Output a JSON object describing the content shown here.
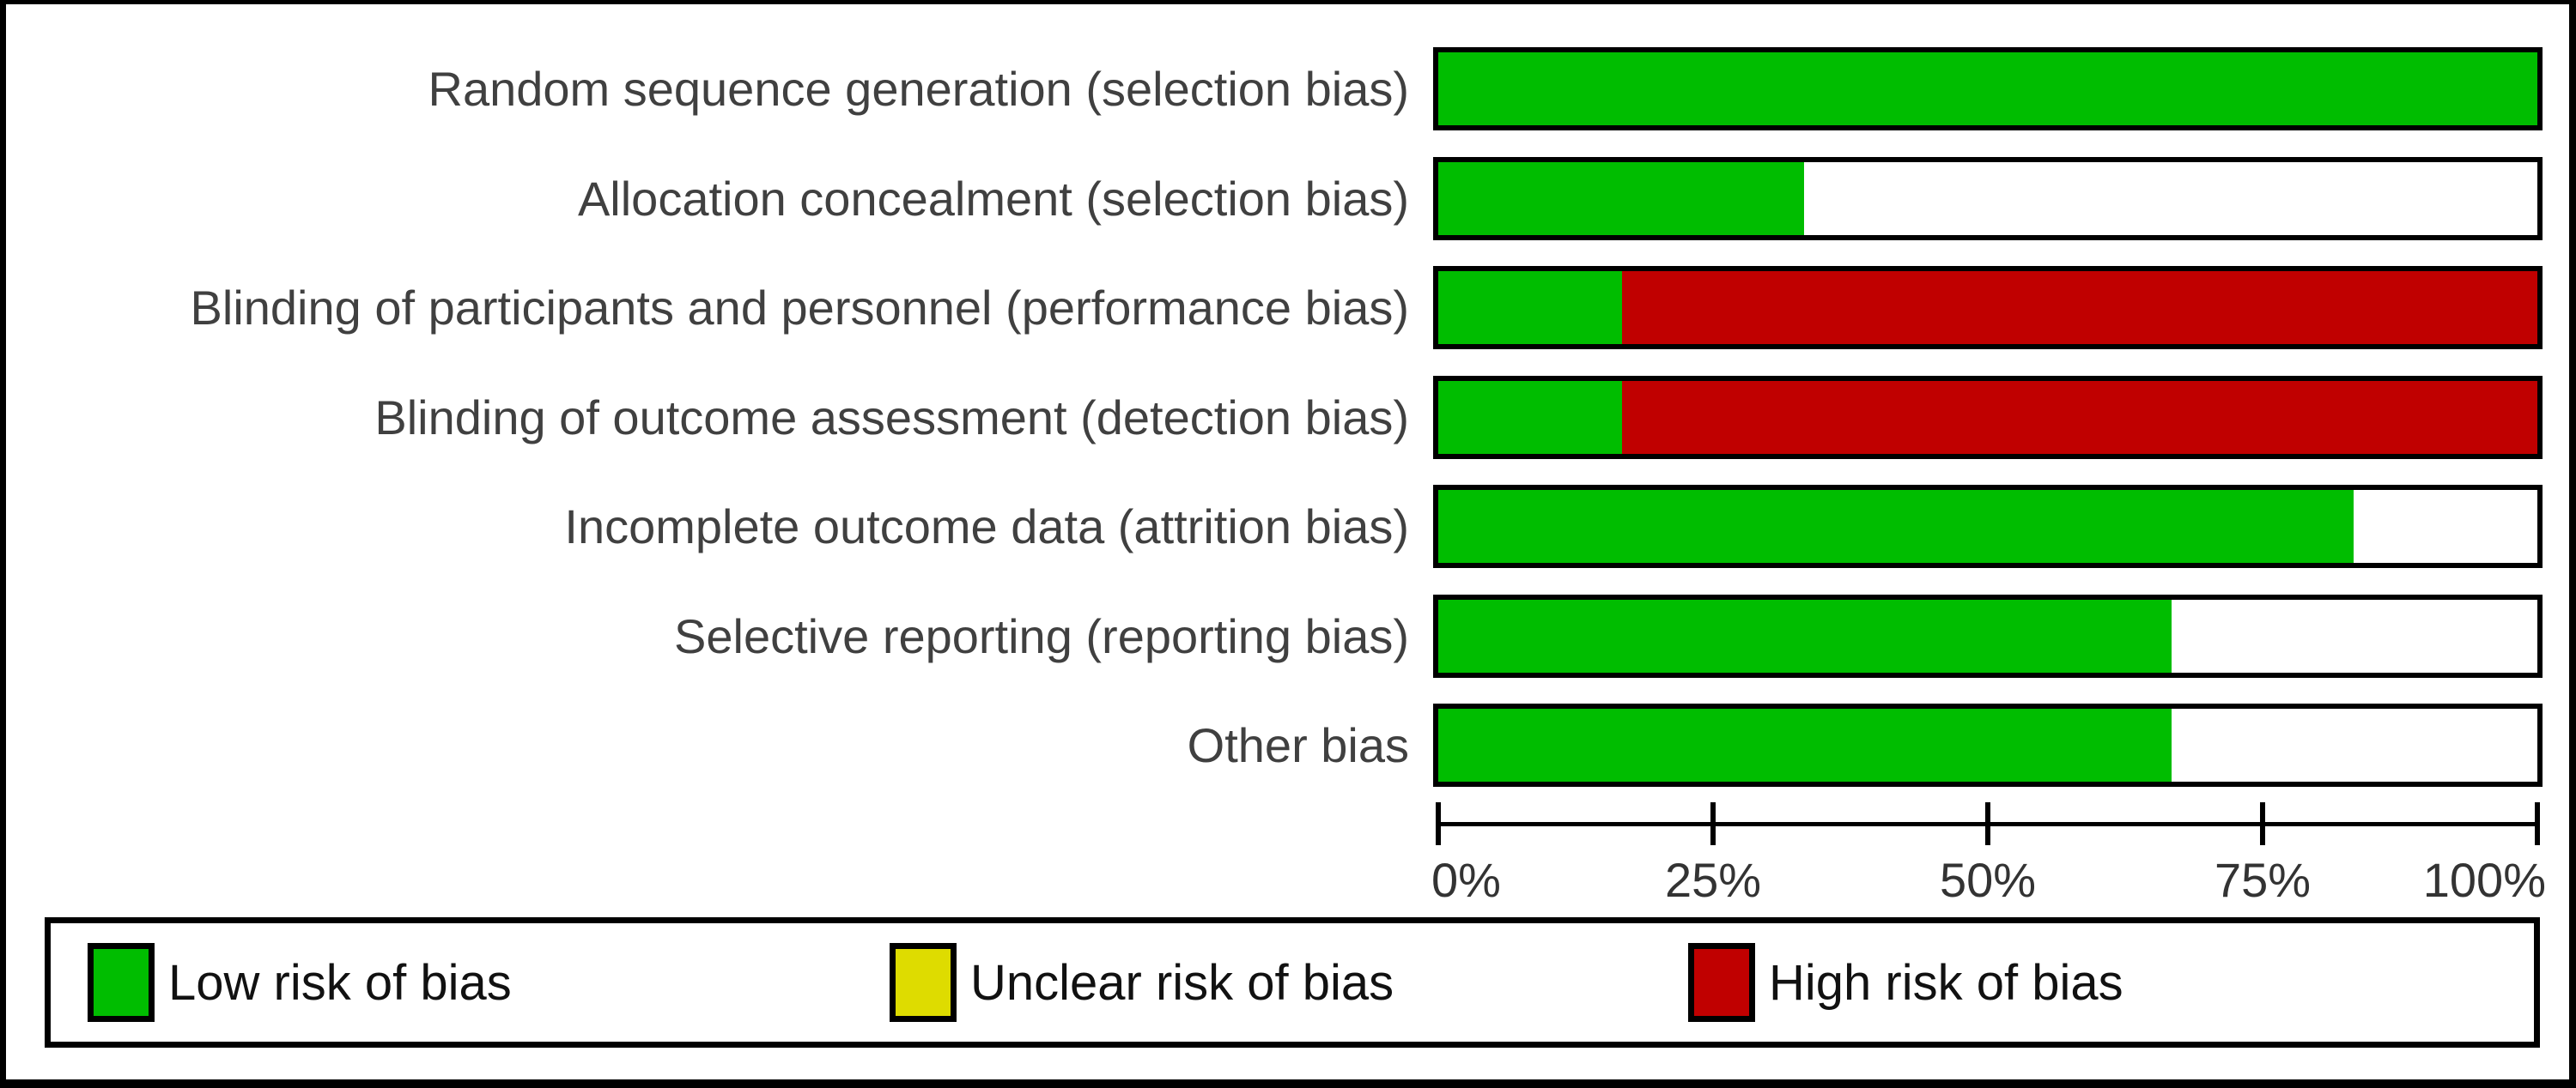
{
  "chart_data": {
    "type": "bar",
    "orientation": "horizontal",
    "stacked": true,
    "title": "",
    "categories": [
      "Random sequence generation (selection bias)",
      "Allocation concealment (selection bias)",
      "Blinding of participants and personnel (performance bias)",
      "Blinding of outcome assessment (detection bias)",
      "Incomplete outcome data (attrition bias)",
      "Selective reporting (reporting bias)",
      "Other bias"
    ],
    "series": [
      {
        "name": "Low risk of bias",
        "color": "#00bd00",
        "values": [
          100,
          33.3,
          16.7,
          16.7,
          83.3,
          66.7,
          66.7
        ]
      },
      {
        "name": "Unclear risk of bias",
        "color": "#dedc00",
        "values": [
          0,
          0,
          0,
          0,
          0,
          0,
          0
        ]
      },
      {
        "name": "High risk of bias",
        "color": "#c00000",
        "values": [
          0,
          0,
          83.3,
          83.3,
          0,
          0,
          0
        ]
      }
    ],
    "x_ticks": [
      {
        "label": "0%",
        "value": 0
      },
      {
        "label": "25%",
        "value": 25
      },
      {
        "label": "50%",
        "value": 50
      },
      {
        "label": "75%",
        "value": 75
      },
      {
        "label": "100%",
        "value": 100
      }
    ],
    "xlim": [
      0,
      100
    ],
    "grid": false,
    "legend_position": "bottom",
    "remainder_fill": "#ffffff",
    "bar_border_color": "#000000"
  },
  "legend": {
    "items": [
      {
        "label": "Low risk of bias",
        "color": "#00bd00"
      },
      {
        "label": "Unclear risk of bias",
        "color": "#dedc00"
      },
      {
        "label": "High risk of bias",
        "color": "#c00000"
      }
    ]
  },
  "colors": {
    "low_risk": "#00bd00",
    "unclear_risk": "#dedc00",
    "high_risk": "#c00000",
    "label_text": "#404040",
    "border": "#000000",
    "background": "#ffffff"
  }
}
